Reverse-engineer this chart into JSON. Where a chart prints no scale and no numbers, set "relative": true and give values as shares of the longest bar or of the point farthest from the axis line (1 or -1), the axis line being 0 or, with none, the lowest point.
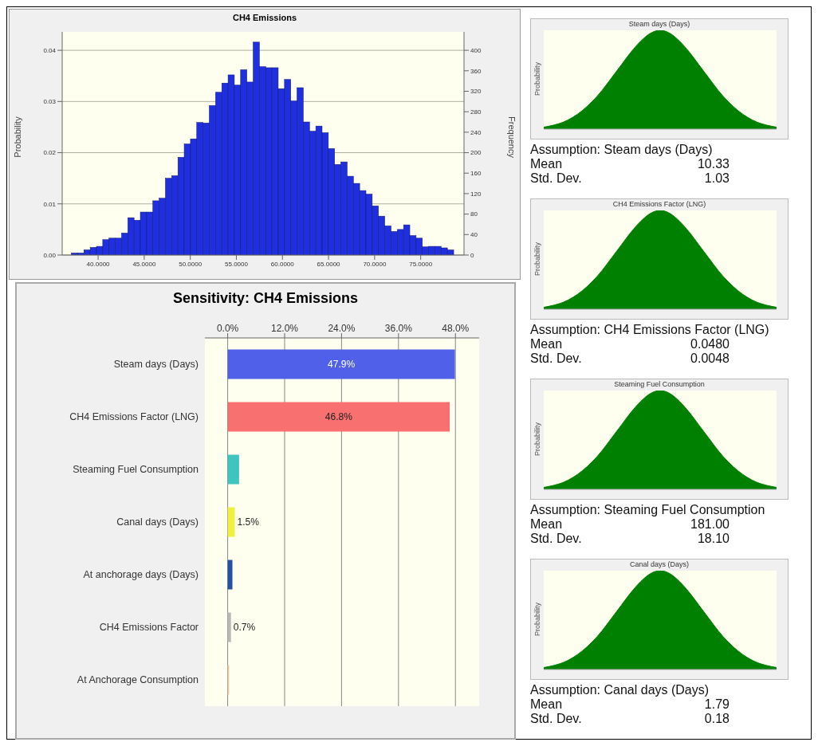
{
  "chart_data": [
    {
      "type": "histogram",
      "title": "CH4 Emissions",
      "ylabel": "Probability",
      "y2label": "Frequency",
      "color": "#1f2fe0",
      "bins": [
        37.1,
        37.78,
        38.46,
        39.14,
        39.82,
        40.5,
        41.18,
        41.86,
        42.54,
        43.22,
        43.9,
        44.58,
        45.26,
        45.94,
        46.62,
        47.3,
        47.98,
        48.66,
        49.34,
        50.02,
        50.7,
        51.38,
        52.06,
        52.74,
        53.42,
        54.1,
        54.78,
        55.46,
        56.14,
        56.82,
        57.5,
        58.18,
        58.86,
        59.54,
        60.22,
        60.9,
        61.58,
        62.26,
        62.94,
        63.62,
        64.3,
        64.98,
        65.66,
        66.34,
        67.02,
        67.7,
        68.38,
        69.06,
        69.74,
        70.42,
        71.1,
        71.78,
        72.46,
        73.14,
        73.82,
        74.5,
        75.18,
        75.86,
        76.54,
        77.22,
        77.9,
        78.58
      ],
      "values": [
        0.0004,
        0.0004,
        0.001,
        0.0015,
        0.0017,
        0.003,
        0.0033,
        0.0033,
        0.0043,
        0.0073,
        0.0068,
        0.0084,
        0.0084,
        0.0106,
        0.0111,
        0.015,
        0.0155,
        0.0191,
        0.0217,
        0.0227,
        0.0259,
        0.0258,
        0.0292,
        0.0318,
        0.0336,
        0.0352,
        0.0332,
        0.0362,
        0.0338,
        0.0416,
        0.0368,
        0.0366,
        0.0366,
        0.0325,
        0.0343,
        0.0301,
        0.0327,
        0.026,
        0.0242,
        0.0252,
        0.0239,
        0.0208,
        0.0177,
        0.0182,
        0.0154,
        0.014,
        0.0126,
        0.0119,
        0.0096,
        0.0076,
        0.0057,
        0.0046,
        0.005,
        0.0059,
        0.0038,
        0.0033,
        0.0016,
        0.0017,
        0.0017,
        0.0014,
        0.001
      ],
      "xlim": [
        36.1,
        79.7
      ],
      "xticks": [
        {
          "value": 40,
          "label": "40.0000"
        },
        {
          "value": 45,
          "label": "45.0000"
        },
        {
          "value": 50,
          "label": "50.0000"
        },
        {
          "value": 55,
          "label": "55.0000"
        },
        {
          "value": 60,
          "label": "60.0000"
        },
        {
          "value": 65,
          "label": "65.0000"
        },
        {
          "value": 70,
          "label": "70.0000"
        },
        {
          "value": 75,
          "label": "75.0000"
        }
      ],
      "ylim": [
        0,
        0.0436
      ],
      "yticks": [
        {
          "value": 0,
          "label": "0.00"
        },
        0.01,
        0.02,
        0.03,
        0.04
      ],
      "y2lim": [
        0,
        436
      ],
      "y2ticks": [
        0,
        40,
        80,
        120,
        160,
        200,
        240,
        280,
        320,
        360,
        400
      ],
      "grid": "y"
    },
    {
      "type": "bar",
      "orientation": "horizontal",
      "title": "Sensitivity: CH4 Emissions",
      "categories": [
        "Steam days (Days)",
        "CH4 Emissions Factor (LNG)",
        "Steaming Fuel Consumption",
        "Canal days (Days)",
        "At anchorage days (Days)",
        "CH4 Emissions Factor",
        "At Anchorage Consumption"
      ],
      "values": [
        47.9,
        46.8,
        2.4,
        1.5,
        1.0,
        0.7,
        0.3
      ],
      "colors": [
        "#5060e8",
        "#f87070",
        "#40c4c0",
        "#f0f040",
        "#2850a0",
        "#b8b8b8",
        "#f0c8a0"
      ],
      "value_labels": [
        "47.9%",
        "46.8%",
        null,
        "1.5%",
        null,
        "0.7%",
        null
      ],
      "xlim": [
        -4.8,
        53
      ],
      "xticks": [
        {
          "value": 0,
          "label": "0.0%"
        },
        {
          "value": 12,
          "label": "12.0%"
        },
        {
          "value": 24,
          "label": "24.0%"
        },
        {
          "value": 36,
          "label": "36.0%"
        },
        {
          "value": 48,
          "label": "48.0%"
        }
      ],
      "grid": "x"
    },
    {
      "type": "area",
      "relative": true,
      "title": "Steam days (Days)",
      "ylabel": "Probability",
      "color": "#008000",
      "categories": [
        null,
        null,
        null,
        null,
        null,
        null,
        null,
        null,
        null,
        null,
        null,
        null,
        null,
        null,
        null,
        null,
        null,
        null,
        null,
        null,
        null,
        null,
        null,
        null,
        null
      ],
      "values": [
        0.02,
        0.04,
        0.07,
        0.12,
        0.19,
        0.28,
        0.39,
        0.52,
        0.65,
        0.78,
        0.89,
        0.97,
        1,
        0.97,
        0.89,
        0.78,
        0.65,
        0.52,
        0.39,
        0.28,
        0.19,
        0.12,
        0.07,
        0.04,
        0.02
      ],
      "annotations": [
        "Assumption: Steam days (Days)",
        "Mean",
        "10.33",
        "Std. Dev.",
        "1.03"
      ]
    },
    {
      "type": "area",
      "relative": true,
      "title": "CH4 Emissions Factor (LNG)",
      "ylabel": "Probability",
      "color": "#008000",
      "categories": [
        null,
        null,
        null,
        null,
        null,
        null,
        null,
        null,
        null,
        null,
        null,
        null,
        null,
        null,
        null,
        null,
        null,
        null,
        null,
        null,
        null,
        null,
        null,
        null,
        null
      ],
      "values": [
        0.02,
        0.04,
        0.07,
        0.12,
        0.19,
        0.28,
        0.39,
        0.52,
        0.65,
        0.78,
        0.89,
        0.97,
        1,
        0.97,
        0.89,
        0.78,
        0.65,
        0.52,
        0.39,
        0.28,
        0.19,
        0.12,
        0.07,
        0.04,
        0.02
      ],
      "annotations": [
        "Assumption: CH4 Emissions Factor (LNG)",
        "Mean",
        "0.0480",
        "Std. Dev.",
        "0.0048"
      ]
    },
    {
      "type": "area",
      "relative": true,
      "title": "Steaming Fuel Consumption",
      "ylabel": "Probability",
      "color": "#008000",
      "categories": [
        null,
        null,
        null,
        null,
        null,
        null,
        null,
        null,
        null,
        null,
        null,
        null,
        null,
        null,
        null,
        null,
        null,
        null,
        null,
        null,
        null,
        null,
        null,
        null,
        null
      ],
      "values": [
        0.02,
        0.04,
        0.07,
        0.12,
        0.19,
        0.28,
        0.39,
        0.52,
        0.65,
        0.78,
        0.89,
        0.97,
        1,
        0.97,
        0.89,
        0.78,
        0.65,
        0.52,
        0.39,
        0.28,
        0.19,
        0.12,
        0.07,
        0.04,
        0.02
      ],
      "annotations": [
        "Assumption: Steaming Fuel Consumption",
        "Mean",
        "181.00",
        "Std. Dev.",
        "18.10"
      ]
    },
    {
      "type": "area",
      "relative": true,
      "title": "Canal days (Days)",
      "ylabel": "Probability",
      "color": "#008000",
      "categories": [
        null,
        null,
        null,
        null,
        null,
        null,
        null,
        null,
        null,
        null,
        null,
        null,
        null,
        null,
        null,
        null,
        null,
        null,
        null,
        null,
        null,
        null,
        null,
        null,
        null
      ],
      "values": [
        0.02,
        0.04,
        0.07,
        0.12,
        0.19,
        0.28,
        0.39,
        0.52,
        0.65,
        0.78,
        0.89,
        0.97,
        1,
        0.97,
        0.89,
        0.78,
        0.65,
        0.52,
        0.39,
        0.28,
        0.19,
        0.12,
        0.07,
        0.04,
        0.02
      ],
      "annotations": [
        "Assumption: Canal days (Days)",
        "Mean",
        "1.79",
        "Std. Dev.",
        "0.18"
      ]
    }
  ]
}
